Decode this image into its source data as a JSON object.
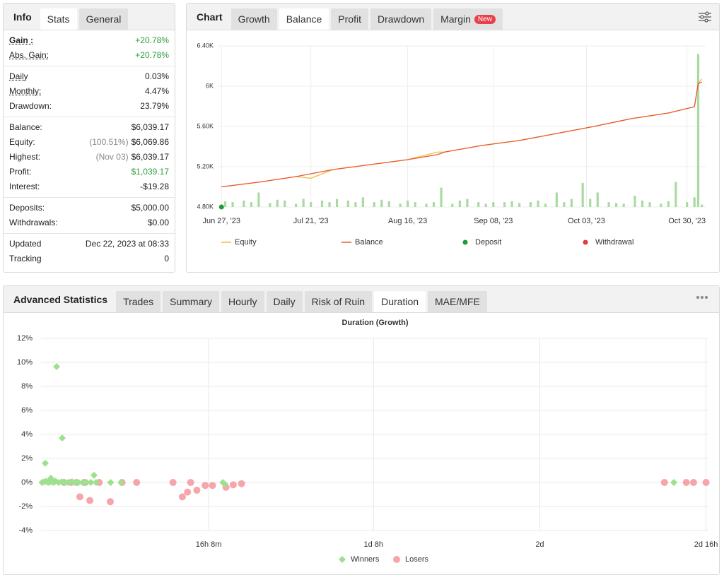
{
  "info_panel": {
    "title": "Info",
    "tabs": [
      "Stats",
      "General"
    ],
    "active_tab": 0,
    "sections": [
      [
        {
          "label": "Gain :",
          "value": "+20.78%",
          "color": "#2e9e3a",
          "underline": true,
          "bold": true
        },
        {
          "label": "Abs. Gain:",
          "value": "+20.78%",
          "color": "#2e9e3a",
          "underline": true
        }
      ],
      [
        {
          "label": "Daily",
          "value": "0.03%",
          "underline": true
        },
        {
          "label": "Monthly:",
          "value": "4.47%",
          "underline": true
        },
        {
          "label": "Drawdown:",
          "value": "23.79%"
        }
      ],
      [
        {
          "label": "Balance:",
          "value": "$6,039.17"
        },
        {
          "label": "Equity:",
          "note": "(100.51%)",
          "value": "$6,069.86"
        },
        {
          "label": "Highest:",
          "note": "(Nov 03)",
          "value": "$6,039.17"
        },
        {
          "label": "Profit:",
          "value": "$1,039.17",
          "color": "#2e9e3a"
        },
        {
          "label": "Interest:",
          "value": "-$19.28"
        }
      ],
      [
        {
          "label": "Deposits:",
          "value": "$5,000.00"
        },
        {
          "label": "Withdrawals:",
          "value": "$0.00"
        }
      ],
      [
        {
          "label": "Updated",
          "value": "Dec 22, 2023 at 08:33"
        },
        {
          "label": "Tracking",
          "value": "0"
        }
      ]
    ]
  },
  "chart_panel": {
    "title": "Chart",
    "tabs": [
      "Growth",
      "Balance",
      "Profit",
      "Drawdown",
      "Margin"
    ],
    "active_tab": 1,
    "badge": {
      "tab": 4,
      "label": "New"
    }
  },
  "stats_panel": {
    "title": "Advanced Statistics",
    "tabs": [
      "Trades",
      "Summary",
      "Hourly",
      "Daily",
      "Risk of Ruin",
      "Duration",
      "MAE/MFE"
    ],
    "active_tab": 5
  },
  "chart_data": [
    {
      "type": "line",
      "xlim": [
        "2023-06-26",
        "2023-11-04"
      ],
      "xticks": [
        {
          "value": "2023-06-27",
          "label": "Jun 27, '23"
        },
        {
          "value": "2023-07-21",
          "label": "Jul 21, '23"
        },
        {
          "value": "2023-08-16",
          "label": "Aug 16, '23"
        },
        {
          "value": "2023-09-08",
          "label": "Sep 08, '23"
        },
        {
          "value": "2023-10-03",
          "label": "Oct 03, '23"
        },
        {
          "value": "2023-10-30",
          "label": "Oct 30, '23"
        }
      ],
      "ylim": [
        4800,
        6400
      ],
      "yticks": [
        {
          "value": 4800,
          "label": "4.80K"
        },
        {
          "value": 5200,
          "label": "5.20K"
        },
        {
          "value": 5600,
          "label": "5.60K"
        },
        {
          "value": 6000,
          "label": "6K"
        },
        {
          "value": 6400,
          "label": "6.40K"
        }
      ],
      "grid": true,
      "y2lim": [
        0,
        10
      ],
      "series": [
        {
          "name": "Equity",
          "color": "#f5b945",
          "marker": "line",
          "x": [
            "2023-06-27",
            "2023-07-07",
            "2023-07-17",
            "2023-07-21",
            "2023-07-27",
            "2023-08-06",
            "2023-08-16",
            "2023-08-24",
            "2023-08-26",
            "2023-09-05",
            "2023-09-15",
            "2023-09-25",
            "2023-10-05",
            "2023-10-15",
            "2023-10-25",
            "2023-11-01",
            "2023-11-02",
            "2023-11-03"
          ],
          "values": [
            5000,
            5046,
            5102,
            5085,
            5172,
            5221,
            5270,
            5345,
            5347,
            5411,
            5460,
            5530,
            5600,
            5677,
            5733,
            5796,
            6028,
            6069.86
          ]
        },
        {
          "name": "Balance",
          "color": "#e8582c",
          "marker": "line",
          "x": [
            "2023-06-27",
            "2023-07-07",
            "2023-07-17",
            "2023-07-21",
            "2023-07-27",
            "2023-08-06",
            "2023-08-16",
            "2023-08-24",
            "2023-08-26",
            "2023-09-05",
            "2023-09-15",
            "2023-09-25",
            "2023-10-05",
            "2023-10-15",
            "2023-10-25",
            "2023-11-01",
            "2023-11-02",
            "2023-11-03"
          ],
          "values": [
            5000,
            5046,
            5102,
            5130,
            5172,
            5221,
            5270,
            5320,
            5347,
            5411,
            5460,
            5530,
            5600,
            5677,
            5733,
            5796,
            6028,
            6039.17
          ]
        },
        {
          "name": "Deposit",
          "color": "#1f9a3a",
          "marker": "dot",
          "x": [
            "2023-06-27"
          ],
          "values": [
            5000
          ]
        },
        {
          "name": "Withdrawal",
          "color": "#e23b3b",
          "marker": "dot",
          "x": [],
          "values": []
        }
      ],
      "bars": {
        "color": "#a9dba1",
        "axis": "y2",
        "x": [
          "2023-06-28",
          "2023-06-30",
          "2023-07-03",
          "2023-07-05",
          "2023-07-07",
          "2023-07-10",
          "2023-07-12",
          "2023-07-14",
          "2023-07-17",
          "2023-07-19",
          "2023-07-21",
          "2023-07-24",
          "2023-07-26",
          "2023-07-28",
          "2023-07-31",
          "2023-08-02",
          "2023-08-04",
          "2023-08-07",
          "2023-08-09",
          "2023-08-11",
          "2023-08-14",
          "2023-08-16",
          "2023-08-18",
          "2023-08-21",
          "2023-08-23",
          "2023-08-25",
          "2023-08-28",
          "2023-08-30",
          "2023-09-01",
          "2023-09-04",
          "2023-09-06",
          "2023-09-08",
          "2023-09-11",
          "2023-09-13",
          "2023-09-15",
          "2023-09-18",
          "2023-09-20",
          "2023-09-22",
          "2023-09-25",
          "2023-09-27",
          "2023-09-29",
          "2023-10-02",
          "2023-10-04",
          "2023-10-06",
          "2023-10-09",
          "2023-10-11",
          "2023-10-13",
          "2023-10-16",
          "2023-10-18",
          "2023-10-20",
          "2023-10-23",
          "2023-10-25",
          "2023-10-27",
          "2023-10-30",
          "2023-11-01",
          "2023-11-02",
          "2023-11-03"
        ],
        "values": [
          0.35,
          0.3,
          0.4,
          0.3,
          0.9,
          0.25,
          0.45,
          0.4,
          0.2,
          0.5,
          0.3,
          0.4,
          0.3,
          0.5,
          0.4,
          0.3,
          0.6,
          0.3,
          0.45,
          0.35,
          0.2,
          0.4,
          0.3,
          0.2,
          0.3,
          1.2,
          0.2,
          0.4,
          0.5,
          0.3,
          0.2,
          0.3,
          0.3,
          0.35,
          0.25,
          0.3,
          0.4,
          0.2,
          0.9,
          0.3,
          0.5,
          1.5,
          0.5,
          0.9,
          0.3,
          0.25,
          0.2,
          0.7,
          0.4,
          0.3,
          0.2,
          0.35,
          1.55,
          0.3,
          0.6,
          9.5,
          0.15
        ]
      }
    },
    {
      "type": "scatter",
      "title": "Duration (Growth)",
      "xlim": [
        0,
        64.3
      ],
      "xticks": [
        {
          "value": 16.133,
          "label": "16h 8m"
        },
        {
          "value": 32,
          "label": "1d 8h"
        },
        {
          "value": 48,
          "label": "2d"
        },
        {
          "value": 64,
          "label": "2d 16h"
        }
      ],
      "ylim": [
        -4,
        12
      ],
      "yticks": [
        {
          "value": -4,
          "label": "-4%"
        },
        {
          "value": -2,
          "label": "-2%"
        },
        {
          "value": 0,
          "label": "0%"
        },
        {
          "value": 2,
          "label": "2%"
        },
        {
          "value": 4,
          "label": "4%"
        },
        {
          "value": 6,
          "label": "6%"
        },
        {
          "value": 8,
          "label": "8%"
        },
        {
          "value": 10,
          "label": "10%"
        },
        {
          "value": 12,
          "label": "12%"
        }
      ],
      "grid": true,
      "series": [
        {
          "name": "Winners",
          "color": "#9ee08f",
          "marker": "diamond",
          "x": [
            1.5,
            2.04,
            0.41,
            5.1,
            0.95,
            0.1,
            0.3,
            0.5,
            0.7,
            0.9,
            1.2,
            1.4,
            1.7,
            2.0,
            2.3,
            2.6,
            3.0,
            3.3,
            3.6,
            4.0,
            4.4,
            4.8,
            5.3,
            6.7,
            7.7,
            17.5,
            17.7,
            60.9
          ],
          "values": [
            9.65,
            3.7,
            1.6,
            0.6,
            0.35,
            0,
            0.05,
            0.1,
            0,
            0.05,
            0,
            0.1,
            0,
            0.05,
            0,
            0,
            0.05,
            0,
            0,
            0,
            0,
            0,
            0,
            0,
            0,
            0,
            -0.15,
            0
          ]
        },
        {
          "name": "Losers",
          "color": "#f6a0a6",
          "marker": "circle",
          "x": [
            3.74,
            4.7,
            6.67,
            7.8,
            9.2,
            12.7,
            14.4,
            13.6,
            14.1,
            15.0,
            15.8,
            16.5,
            17.8,
            18.5,
            19.3,
            60.0,
            62.1,
            62.8,
            64.0,
            2.2,
            2.9,
            3.4,
            4.2,
            5.6
          ],
          "values": [
            -1.2,
            -1.5,
            -1.6,
            0,
            0,
            0,
            0,
            -1.2,
            -0.8,
            -0.65,
            -0.25,
            -0.25,
            -0.4,
            -0.2,
            -0.1,
            0,
            0,
            0,
            0,
            0,
            0,
            0,
            0,
            0
          ]
        }
      ]
    }
  ]
}
